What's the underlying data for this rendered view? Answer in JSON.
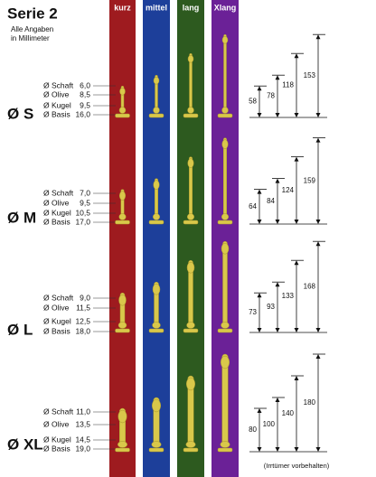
{
  "header": {
    "title": "Serie 2",
    "subtitle": [
      "Alle Angaben",
      "in Millimeter"
    ]
  },
  "columns": [
    "kurz",
    "mittel",
    "lang",
    "Xlang"
  ],
  "sizes": [
    {
      "label": "Ø S",
      "rows": [
        {
          "name": "Ø Schaft",
          "value": "6,0"
        },
        {
          "name": "Ø Olive",
          "value": "8,5"
        },
        {
          "name": "Ø Kugel",
          "value": "9,5"
        },
        {
          "name": "Ø Basis",
          "value": "16,0"
        }
      ],
      "heights": [
        58,
        78,
        118,
        153
      ]
    },
    {
      "label": "Ø M",
      "rows": [
        {
          "name": "Ø Schaft",
          "value": "7,0"
        },
        {
          "name": "Ø Olive",
          "value": "9,5"
        },
        {
          "name": "Ø Kugel",
          "value": "10,5"
        },
        {
          "name": "Ø Basis",
          "value": "17,0"
        }
      ],
      "heights": [
        64,
        84,
        124,
        159
      ]
    },
    {
      "label": "Ø L",
      "rows": [
        {
          "name": "Ø Schaft",
          "value": "9,0"
        },
        {
          "name": "Ø Olive",
          "value": "11,5"
        },
        {
          "name": "Ø Kugel",
          "value": "12,5"
        },
        {
          "name": "Ø Basis",
          "value": "18,0"
        }
      ],
      "heights": [
        73,
        93,
        133,
        168
      ]
    },
    {
      "label": "Ø XL",
      "rows": [
        {
          "name": "Ø Schaft",
          "value": "11,0"
        },
        {
          "name": "Ø Olive",
          "value": "13,5"
        },
        {
          "name": "Ø Kugel",
          "value": "14,5"
        },
        {
          "name": "Ø Basis",
          "value": "19,0"
        }
      ],
      "heights": [
        80,
        100,
        140,
        180
      ]
    }
  ],
  "footnote": "(Irrtümer vorbehalten)"
}
